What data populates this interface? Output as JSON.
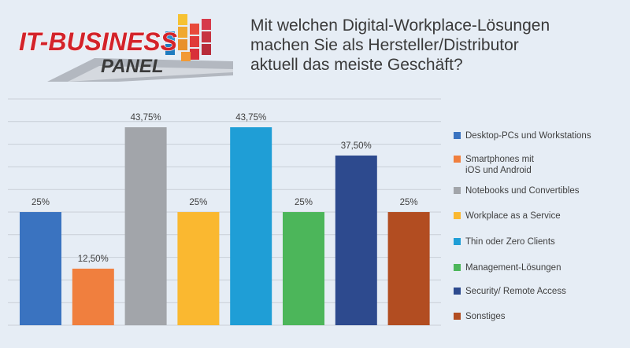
{
  "logo": {
    "line1": "IT-BUSINESS",
    "line2": "PANEL"
  },
  "title_lines": [
    "Mit welchen Digital-Workplace-Lösungen",
    "machen Sie als Hersteller/Distributor",
    "aktuell das meiste Geschäft?"
  ],
  "chart_data": {
    "type": "bar",
    "title": "Mit welchen Digital-Workplace-Lösungen machen Sie als Hersteller/Distributor aktuell das meiste Geschäft?",
    "categories": [
      "Desktop-PCs und Workstations",
      "Smartphones mit\niOS und Android",
      "Notebooks und Convertibles",
      "Workplace as a Service",
      "Thin oder Zero Clients",
      "Management-Lösungen",
      "Security/ Remote Access",
      "Sonstiges"
    ],
    "values": [
      25,
      12.5,
      43.75,
      25,
      43.75,
      25,
      37.5,
      25
    ],
    "value_labels": [
      "25%",
      "12,50%",
      "43,75%",
      "25%",
      "43,75%",
      "25%",
      "37,50%",
      "25%"
    ],
    "colors": [
      "#3a73c0",
      "#f07f3e",
      "#a2a5aa",
      "#fab830",
      "#1f9ed6",
      "#4cb65a",
      "#2d4a8e",
      "#b24d21"
    ],
    "ylim": [
      0,
      50
    ],
    "grid": true,
    "legend_position": "right"
  }
}
